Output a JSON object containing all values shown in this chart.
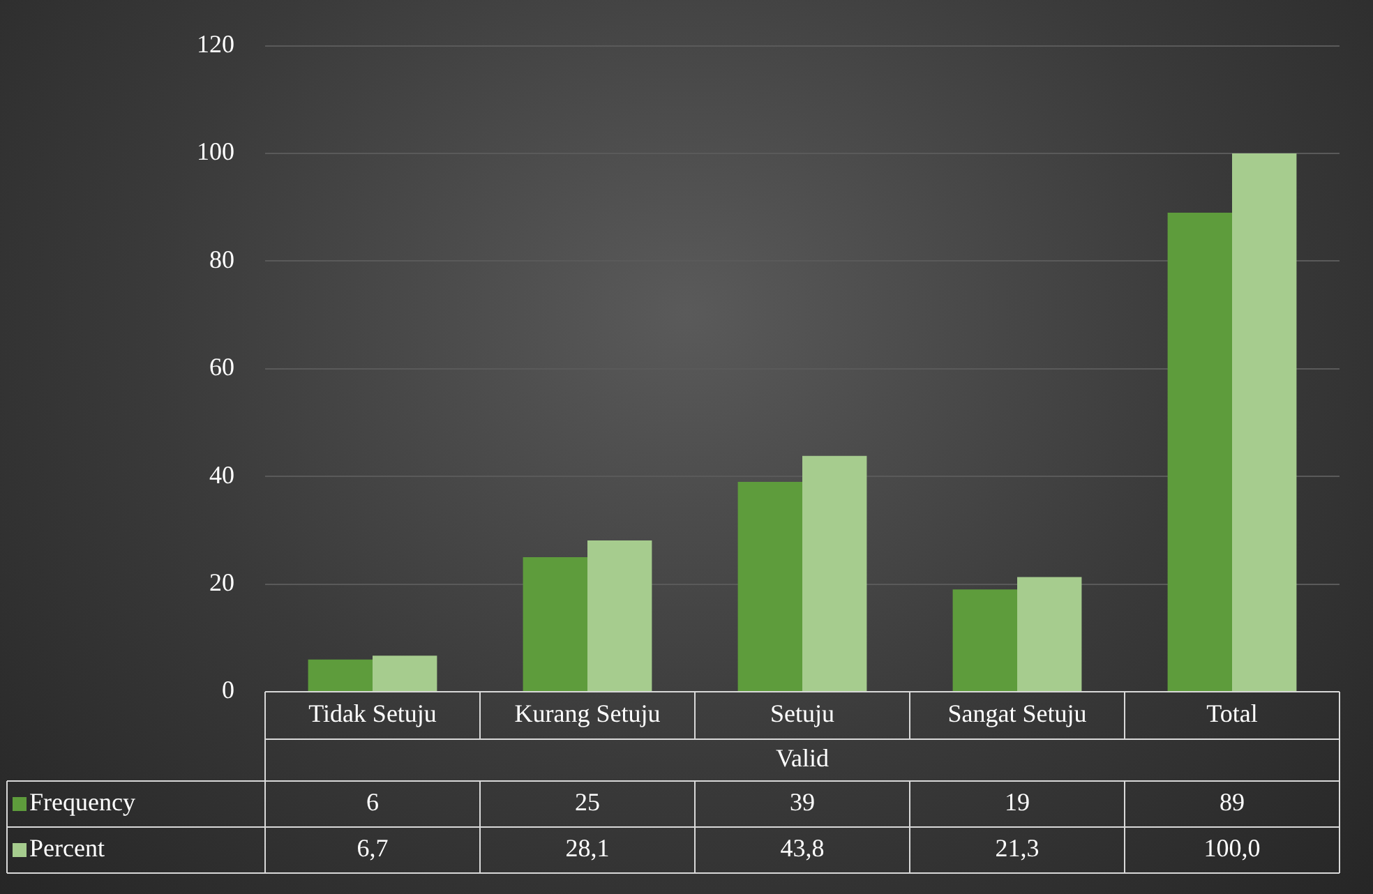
{
  "chart_data": {
    "type": "bar",
    "categories": [
      "Tidak Setuju",
      "Kurang Setuju",
      "Setuju",
      "Sangat Setuju",
      "Total"
    ],
    "xlabel": "Valid",
    "series": [
      {
        "name": "Frequency",
        "color": "#5e9c3c",
        "values": [
          6,
          25,
          39,
          19,
          89
        ],
        "value_labels": [
          "6",
          "25",
          "39",
          "19",
          "89"
        ]
      },
      {
        "name": "Percent",
        "color": "#a6cc8e",
        "values": [
          6.7,
          28.1,
          43.8,
          21.3,
          100.0
        ],
        "value_labels": [
          "6,7",
          "28,1",
          "43,8",
          "21,3",
          "100,0"
        ]
      }
    ],
    "ylim": [
      0,
      120
    ],
    "yticks": [
      0,
      20,
      40,
      60,
      80,
      100,
      120
    ],
    "grid": "y",
    "legend": "bottom left"
  }
}
